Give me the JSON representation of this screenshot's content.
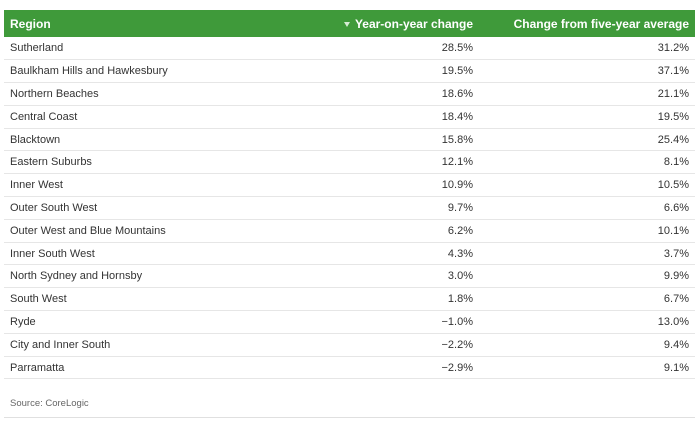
{
  "table": {
    "headers": {
      "region": "Region",
      "yoy": "Year-on-year change",
      "five_year": "Change from five-year average"
    },
    "sorted_column": "yoy",
    "sort_direction": "descending",
    "header_color": "#3f9a3a",
    "rows": [
      {
        "region": "Sutherland",
        "yoy": "28.5%",
        "five_year": "31.2%"
      },
      {
        "region": "Baulkham Hills and Hawkesbury",
        "yoy": "19.5%",
        "five_year": "37.1%"
      },
      {
        "region": "Northern Beaches",
        "yoy": "18.6%",
        "five_year": "21.1%"
      },
      {
        "region": "Central Coast",
        "yoy": "18.4%",
        "five_year": "19.5%"
      },
      {
        "region": "Blacktown",
        "yoy": "15.8%",
        "five_year": "25.4%"
      },
      {
        "region": "Eastern Suburbs",
        "yoy": "12.1%",
        "five_year": "8.1%"
      },
      {
        "region": "Inner West",
        "yoy": "10.9%",
        "five_year": "10.5%"
      },
      {
        "region": "Outer South West",
        "yoy": "9.7%",
        "five_year": "6.6%"
      },
      {
        "region": "Outer West and Blue Mountains",
        "yoy": "6.2%",
        "five_year": "10.1%"
      },
      {
        "region": "Inner South West",
        "yoy": "4.3%",
        "five_year": "3.7%"
      },
      {
        "region": "North Sydney and Hornsby",
        "yoy": "3.0%",
        "five_year": "9.9%"
      },
      {
        "region": "South West",
        "yoy": "1.8%",
        "five_year": "6.7%"
      },
      {
        "region": "Ryde",
        "yoy": "−1.0%",
        "five_year": "13.0%"
      },
      {
        "region": "City and Inner South",
        "yoy": "−2.2%",
        "five_year": "9.4%"
      },
      {
        "region": "Parramatta",
        "yoy": "−2.9%",
        "five_year": "9.1%"
      }
    ]
  },
  "source": "Source: CoreLogic"
}
